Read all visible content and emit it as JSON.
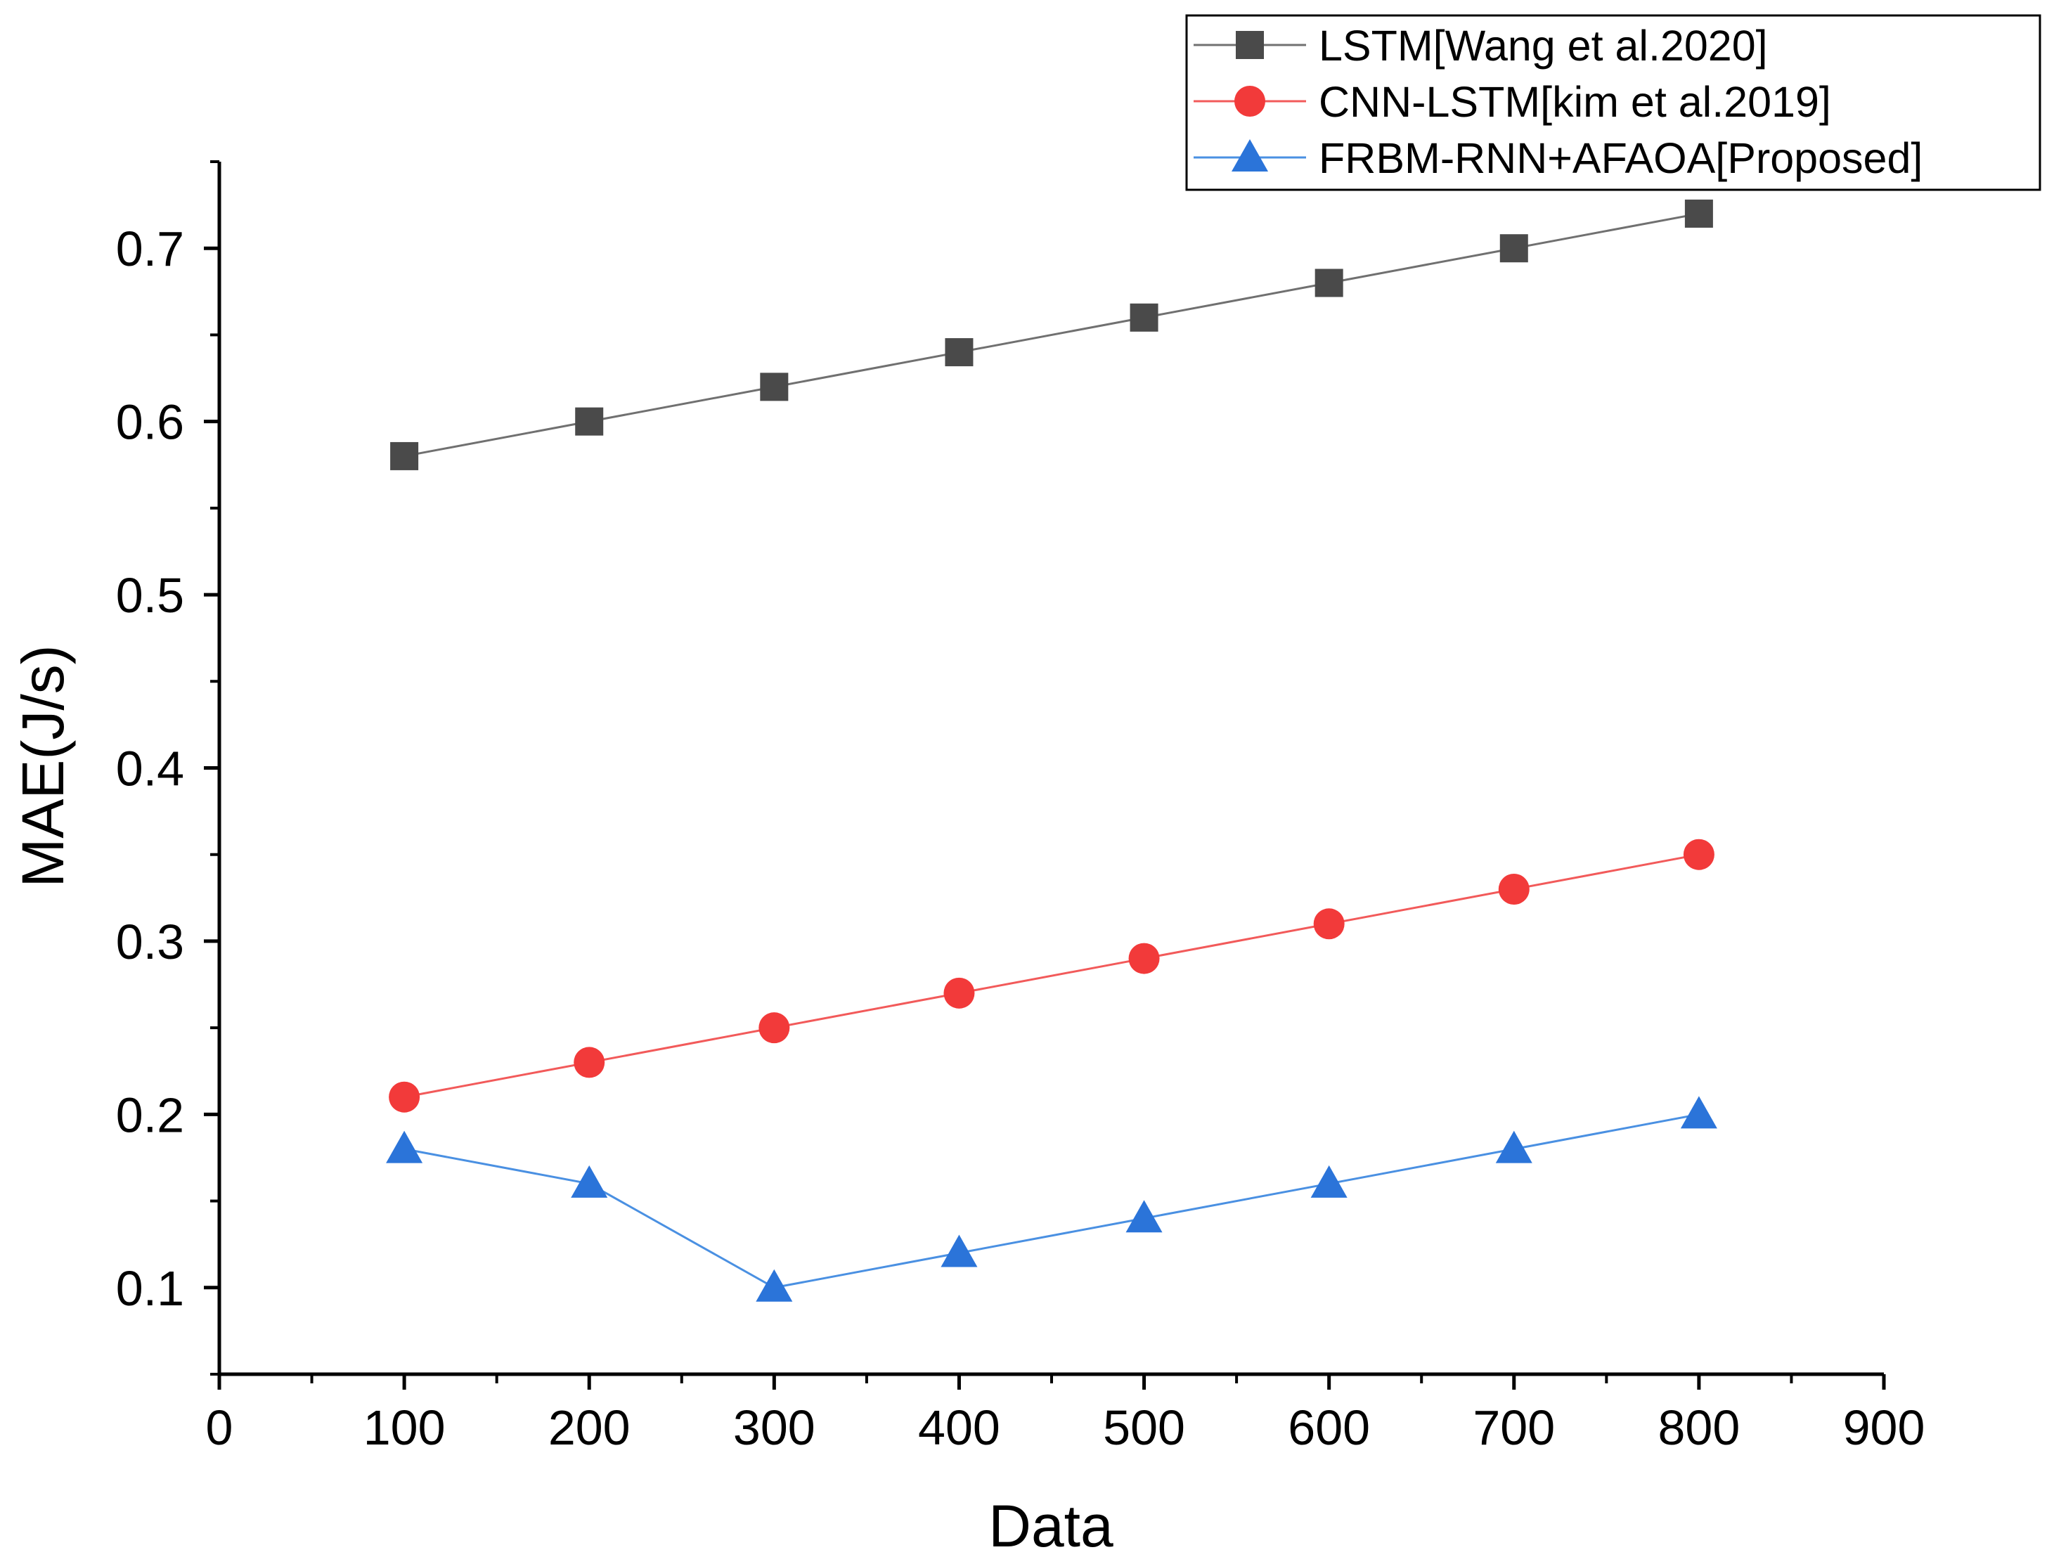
{
  "chart_data": {
    "type": "line",
    "title": "",
    "xlabel": "Data",
    "ylabel": "MAE(J/s)",
    "xlim": [
      0,
      900
    ],
    "ylim": [
      0.05,
      0.75
    ],
    "x_ticks": [
      0,
      100,
      200,
      300,
      400,
      500,
      600,
      700,
      800,
      900
    ],
    "x_tick_labels": [
      "0",
      "100",
      "200",
      "300",
      "400",
      "500",
      "600",
      "700",
      "800",
      "900"
    ],
    "y_ticks": [
      0.1,
      0.2,
      0.3,
      0.4,
      0.5,
      0.6,
      0.7
    ],
    "y_tick_labels": [
      "0.1",
      "0.2",
      "0.3",
      "0.4",
      "0.5",
      "0.6",
      "0.7"
    ],
    "grid": false,
    "legend_position": "top-right",
    "x": [
      100,
      200,
      300,
      400,
      500,
      600,
      700,
      800
    ],
    "series": [
      {
        "name": "LSTM[Wang et al.2020]",
        "marker": "square",
        "color": "#4a4a4a",
        "line_color": "#707070",
        "values": [
          0.58,
          0.6,
          0.62,
          0.64,
          0.66,
          0.68,
          0.7,
          0.72
        ]
      },
      {
        "name": "CNN-LSTM[kim et al.2019]",
        "marker": "circle",
        "color": "#f23a3a",
        "line_color": "#f25a5a",
        "values": [
          0.21,
          0.23,
          0.25,
          0.27,
          0.29,
          0.31,
          0.33,
          0.35
        ]
      },
      {
        "name": "FRBM-RNN+AFAOA[Proposed]",
        "marker": "triangle",
        "color": "#2b74d9",
        "line_color": "#4a90e2",
        "values": [
          0.18,
          0.16,
          0.1,
          0.12,
          0.14,
          0.16,
          0.18,
          0.2
        ]
      }
    ]
  }
}
